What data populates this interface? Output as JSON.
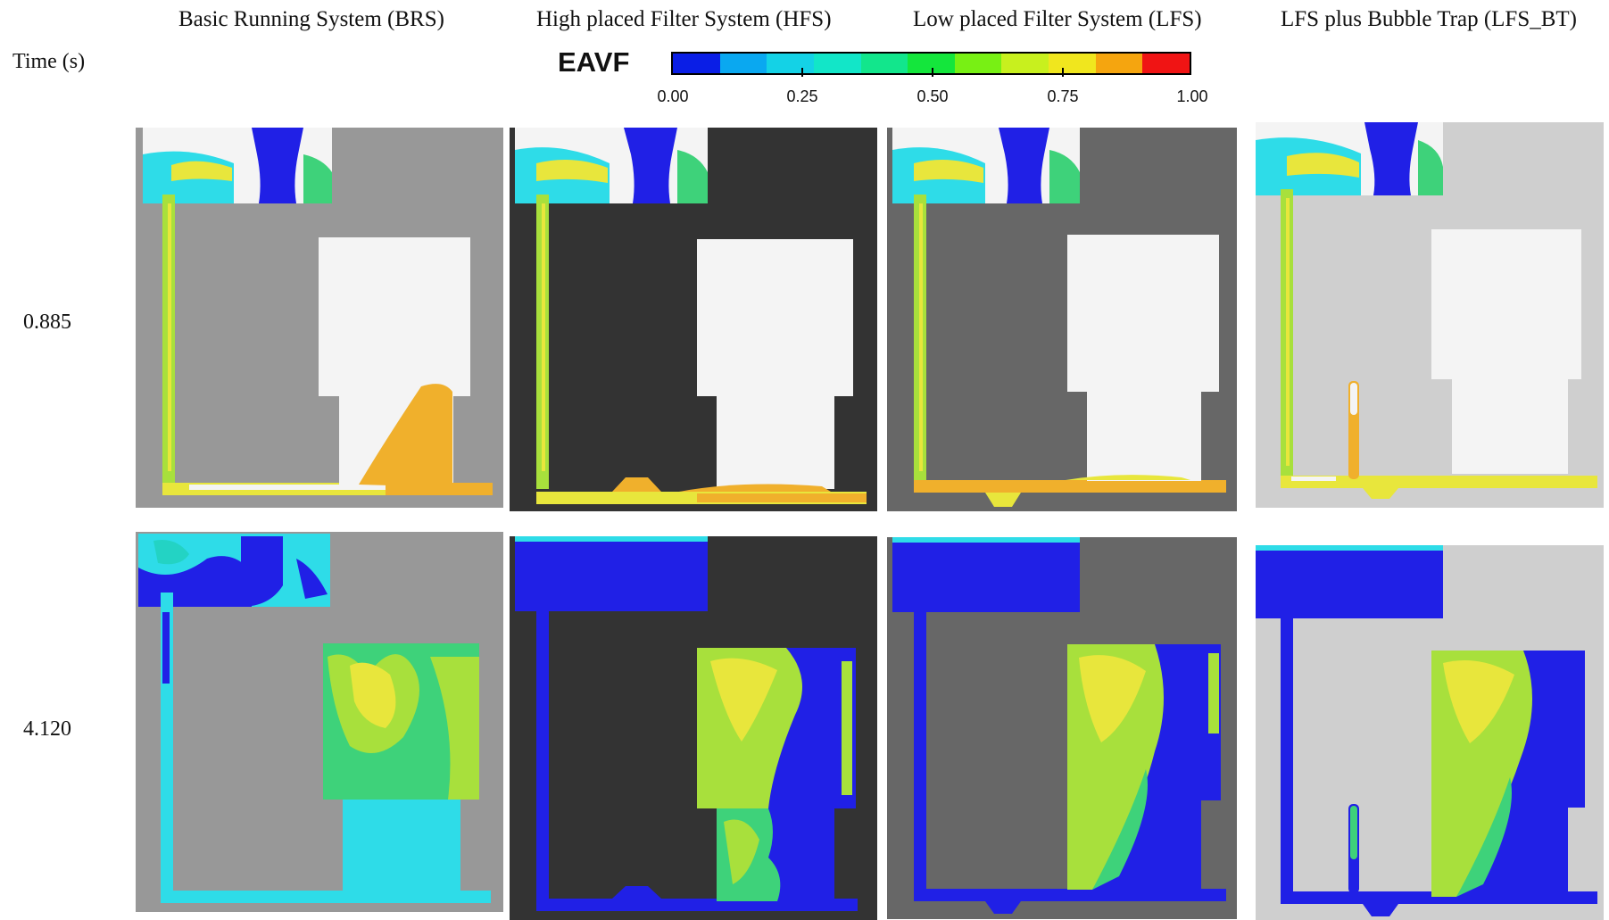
{
  "columns": [
    {
      "label": "Basic Running System (BRS)"
    },
    {
      "label": "High placed Filter System (HFS)"
    },
    {
      "label": "Low placed Filter System (LFS)"
    },
    {
      "label": "LFS plus Bubble Trap (LFS_BT)"
    }
  ],
  "time_header": "Time (s)",
  "rows": [
    {
      "time": "0.885"
    },
    {
      "time": "4.120"
    }
  ],
  "legend": {
    "title": "EAVF",
    "ticks": [
      "0.00",
      "0.25",
      "0.50",
      "0.75",
      "1.00"
    ],
    "colors": [
      "#0a1ee6",
      "#0aa8f0",
      "#14d2e6",
      "#12e6c8",
      "#12e68c",
      "#14e63c",
      "#78f014",
      "#c8f01e",
      "#f0e61e",
      "#f5a50f",
      "#f01414"
    ]
  },
  "palette": {
    "blue": "#2020e6",
    "cyan": "#2edce8",
    "teal": "#23d3c4",
    "green": "#3ed27a",
    "lime": "#a8e03c",
    "yellow": "#e8e63c",
    "orange": "#f0b02c",
    "gray_brs": "#989898",
    "gray_hfs": "#333333",
    "gray_lfs": "#676767",
    "gray_bt": "#cfcfcf"
  }
}
